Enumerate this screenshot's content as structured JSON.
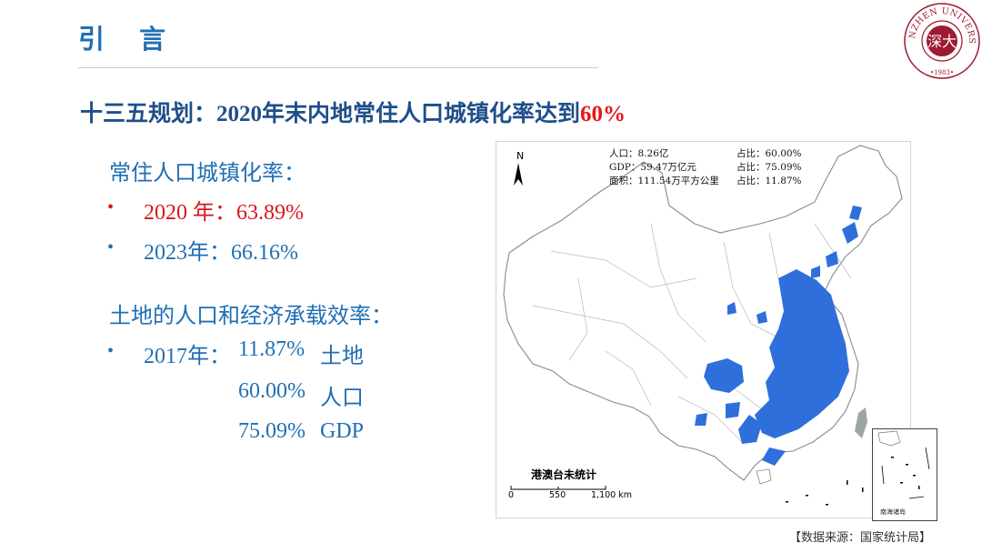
{
  "slide": {
    "title": "引 言",
    "headline_main": "十三五规划：2020年末内地常住人口城镇化率达到",
    "headline_highlight": "60%"
  },
  "urbanization": {
    "heading": "常住人口城镇化率：",
    "items": [
      {
        "bullet": "•",
        "text": "2020 年：63.89%"
      },
      {
        "bullet": "•",
        "text": "2023年：66.16%"
      }
    ]
  },
  "efficiency": {
    "heading": "土地的人口和经济承载效率：",
    "bullet": "•",
    "year": "2017年：",
    "rows": [
      {
        "value": "11.87%",
        "label": "土地"
      },
      {
        "value": "60.00%",
        "label": "人口"
      },
      {
        "value": "75.09%",
        "label": "GDP"
      }
    ]
  },
  "map": {
    "north": "N",
    "stats": [
      {
        "left": "人口：8.26亿",
        "right": "占比：60.00%"
      },
      {
        "left": "GDP：59.47万亿元",
        "right": "占比：75.09%"
      },
      {
        "left": "面积：111.54万平方公里",
        "right": "占比：11.87%"
      }
    ],
    "note": "港澳台未统计",
    "scale": [
      "0",
      "550",
      "1,100 km"
    ],
    "inset_label": "南海诸岛",
    "highlight_color": "#2f6fdc"
  },
  "logo": {
    "ring_text": "SHENZHEN UNIVERSITY",
    "year": "•1983•",
    "color": "#9e1b32"
  },
  "source": "【数据来源：国家统计局】"
}
